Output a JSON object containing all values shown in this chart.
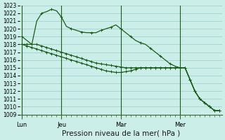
{
  "bg_color": "#cceee8",
  "grid_color": "#99cccc",
  "line_color": "#1a5c1a",
  "xlabel": "Pression niveau de la mer( hPa )",
  "xlabel_fontsize": 7.5,
  "ylim": [
    1009,
    1023
  ],
  "ytick_fontsize": 5.5,
  "xtick_fontsize": 6.0,
  "day_labels": [
    "Lun",
    "Jeu",
    "Mar",
    "Mer"
  ],
  "day_positions": [
    0,
    8,
    20,
    32
  ],
  "n_points": 41,
  "line1": [
    1019.0,
    1018.5,
    1018.0,
    1021.0,
    1022.0,
    1022.2,
    1022.5,
    1022.3,
    1021.5,
    1020.3,
    1020.0,
    1019.8,
    1019.6,
    1019.5,
    1019.5,
    1019.5,
    1019.8,
    1020.0,
    1020.2,
    1020.5,
    1020.0,
    1019.5,
    1019.0,
    1018.5,
    1018.2,
    1018.0,
    1017.5,
    1017.0,
    1016.5,
    1016.0,
    1015.5,
    1015.2,
    1015.0,
    1015.0,
    1013.5,
    1012.0,
    1011.0,
    1010.5,
    1010.0,
    1009.5,
    1009.5
  ],
  "line2": [
    1018.0,
    1018.0,
    1018.0,
    1018.0,
    1017.8,
    1017.6,
    1017.4,
    1017.2,
    1017.0,
    1016.8,
    1016.6,
    1016.4,
    1016.2,
    1016.0,
    1015.8,
    1015.6,
    1015.5,
    1015.4,
    1015.3,
    1015.2,
    1015.1,
    1015.0,
    1015.0,
    1015.0,
    1015.0,
    1015.0,
    1015.0,
    1015.0,
    1015.0,
    1015.0,
    1015.0,
    1015.0,
    1015.0,
    1015.0,
    1013.5,
    1012.0,
    1011.0,
    1010.5,
    1010.0,
    1009.5,
    1009.5
  ],
  "line3": [
    1018.0,
    1017.8,
    1017.6,
    1017.4,
    1017.2,
    1017.0,
    1016.8,
    1016.6,
    1016.4,
    1016.2,
    1016.0,
    1015.8,
    1015.6,
    1015.4,
    1015.2,
    1015.0,
    1014.8,
    1014.6,
    1014.5,
    1014.4,
    1014.4,
    1014.5,
    1014.6,
    1014.8,
    1015.0,
    1015.0,
    1015.0,
    1015.0,
    1015.0,
    1015.0,
    1015.0,
    1015.0,
    1015.0,
    1015.0,
    1013.5,
    1012.0,
    1011.0,
    1010.5,
    1010.0,
    1009.5,
    1009.5
  ]
}
